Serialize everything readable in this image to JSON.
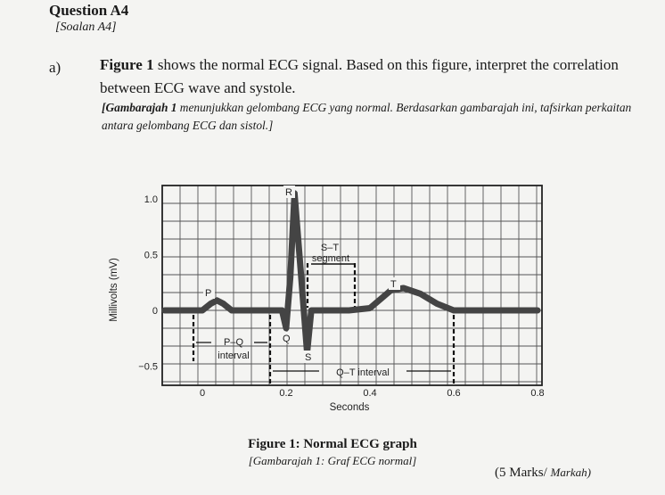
{
  "question": {
    "title": "Question A4",
    "subtitle": "[Soalan A4]"
  },
  "part_a": {
    "label": "a)",
    "figure_ref": "Figure 1",
    "text_en": " shows the normal ECG signal. Based on this figure, interpret the correlation between ECG wave and systole.",
    "text_ms_bold": "[Gambarajah 1",
    "text_ms": " menunjukkan gelombang ECG yang normal. Berdasarkan gambarajah ini, tafsirkan perkaitan antara gelombang ECG dan sistol.]"
  },
  "figure": {
    "caption": "Figure 1:   Normal ECG graph",
    "caption_ms": "[Gambarajah 1: Graf ECG normal]"
  },
  "marks": {
    "text": "(5 Marks/ ",
    "ms": "Markah)"
  },
  "chart_data": {
    "type": "line",
    "xlabel": "Seconds",
    "ylabel": "Millivolts (mV)",
    "xlim": [
      -0.1,
      0.8
    ],
    "ylim": [
      -0.7,
      1.1
    ],
    "x_ticks": [
      "0",
      "0.2",
      "0.4",
      "0.6",
      "0.8"
    ],
    "y_ticks": [
      "1.0",
      "0.5",
      "0",
      "−0.5"
    ],
    "grid": true,
    "series": [
      {
        "x": [
          -0.09,
          0.0,
          0.02,
          0.035,
          0.05,
          0.07,
          0.19,
          0.2,
          0.21,
          0.22,
          0.235,
          0.25,
          0.26,
          0.3,
          0.35,
          0.4,
          0.45,
          0.48,
          0.52,
          0.56,
          0.6,
          0.7,
          0.8
        ],
        "y": [
          0.0,
          0.0,
          0.06,
          0.09,
          0.06,
          0.0,
          0.0,
          -0.16,
          0.3,
          1.05,
          0.35,
          -0.38,
          0.0,
          0.0,
          0.0,
          0.02,
          0.18,
          0.2,
          0.15,
          0.06,
          0.0,
          0.0,
          0.0
        ],
        "color": "#444444"
      }
    ],
    "annotations": [
      {
        "text": "P"
      },
      {
        "text": "Q"
      },
      {
        "text": "R"
      },
      {
        "text": "S"
      },
      {
        "text": "T"
      },
      {
        "text": "S–T"
      },
      {
        "text": "segment"
      },
      {
        "text": "P–Q"
      },
      {
        "text": "interval"
      },
      {
        "text": "Q–T interval"
      }
    ]
  }
}
